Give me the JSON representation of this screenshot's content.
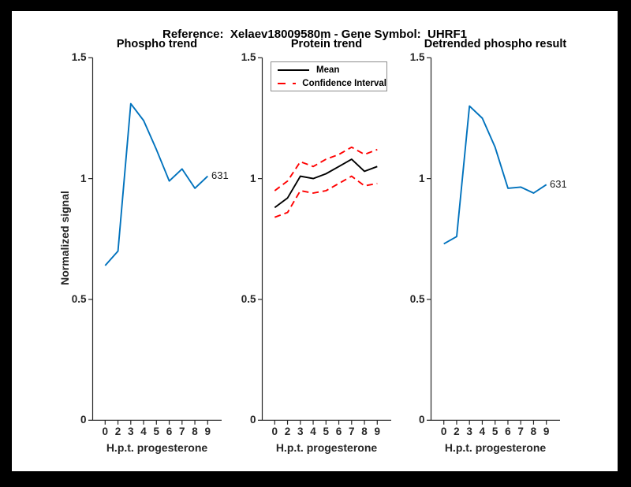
{
  "figure": {
    "title": "Reference:  Xelaev18009580m - Gene Symbol:  UHRF1",
    "background_color": "#000000",
    "canvas_color": "#ffffff"
  },
  "colors": {
    "blue": "#0072BD",
    "red": "#FF0000",
    "black": "#000000",
    "axis": "#262626"
  },
  "axes": {
    "ylabel": "Normalized signal",
    "xlabel": "H.p.t. progesterone",
    "x_tick_labels": [
      "0",
      "2",
      "3",
      "4",
      "5",
      "6",
      "7",
      "8",
      "9"
    ],
    "y_tick_labels": [
      "0",
      "0.5",
      "1",
      "1.5"
    ],
    "y_tick_values": [
      0,
      0.5,
      1,
      1.5
    ],
    "ylim": [
      0,
      1.5
    ],
    "grid": false
  },
  "chart_data": [
    {
      "type": "line",
      "title": "Phospho trend",
      "xlabel": "H.p.t. progesterone",
      "ylabel": "Normalized signal",
      "x": [
        0,
        2,
        3,
        4,
        5,
        6,
        7,
        8,
        9
      ],
      "x_labels": [
        "0",
        "2",
        "3",
        "4",
        "5",
        "6",
        "7",
        "8",
        "9"
      ],
      "ylim": [
        0,
        1.5
      ],
      "series": [
        {
          "name": "phospho-signal",
          "color_key": "blue",
          "dash": "solid",
          "values": [
            0.64,
            0.7,
            1.31,
            1.24,
            1.12,
            0.99,
            1.04,
            0.96,
            1.01
          ]
        }
      ],
      "annotation": {
        "text": "631"
      }
    },
    {
      "type": "line",
      "title": "Protein trend",
      "xlabel": "H.p.t. progesterone",
      "x": [
        0,
        2,
        3,
        4,
        5,
        6,
        7,
        8,
        9
      ],
      "x_labels": [
        "0",
        "2",
        "3",
        "4",
        "5",
        "6",
        "7",
        "8",
        "9"
      ],
      "ylim": [
        0,
        1.5
      ],
      "series": [
        {
          "name": "mean",
          "color_key": "black",
          "dash": "solid",
          "values": [
            0.88,
            0.92,
            1.01,
            1.0,
            1.02,
            1.05,
            1.08,
            1.03,
            1.05
          ]
        },
        {
          "name": "confidence-interval-upper",
          "color_key": "red",
          "dash": "dashed",
          "values": [
            0.95,
            0.99,
            1.07,
            1.05,
            1.08,
            1.1,
            1.13,
            1.1,
            1.12
          ]
        },
        {
          "name": "confidence-interval-lower",
          "color_key": "red",
          "dash": "dashed",
          "values": [
            0.84,
            0.86,
            0.95,
            0.94,
            0.95,
            0.98,
            1.01,
            0.97,
            0.98
          ]
        }
      ],
      "legend": {
        "position": "top-left",
        "items": [
          {
            "label": "Mean",
            "color_key": "black",
            "dash": "solid"
          },
          {
            "label": "Confidence Interval",
            "color_key": "red",
            "dash": "dashed"
          }
        ]
      }
    },
    {
      "type": "line",
      "title": "Detrended phospho result",
      "xlabel": "H.p.t. progesterone",
      "x": [
        0,
        2,
        3,
        4,
        5,
        6,
        7,
        8,
        9
      ],
      "x_labels": [
        "0",
        "2",
        "3",
        "4",
        "5",
        "6",
        "7",
        "8",
        "9"
      ],
      "ylim": [
        0,
        1.5
      ],
      "series": [
        {
          "name": "detrended-phospho-signal",
          "color_key": "blue",
          "dash": "solid",
          "values": [
            0.73,
            0.76,
            1.3,
            1.25,
            1.13,
            0.96,
            0.965,
            0.94,
            0.975
          ]
        }
      ],
      "annotation": {
        "text": "631"
      }
    }
  ]
}
